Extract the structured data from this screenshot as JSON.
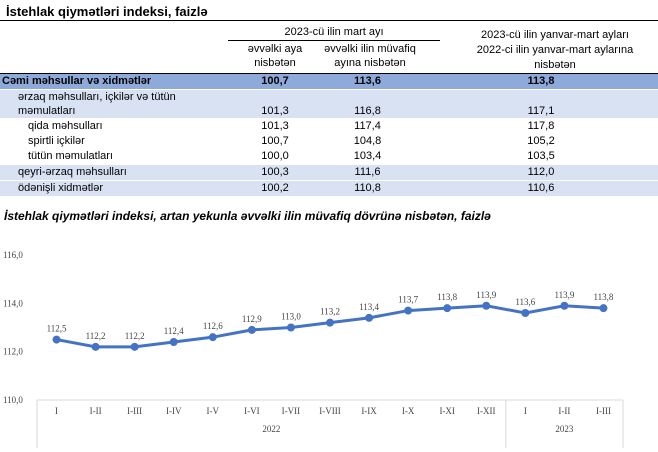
{
  "table": {
    "title": "İstehlak qiymətləri indeksi, faizlə",
    "group1": "2023-cü ilin mart ayı",
    "col1": [
      "əvvəlki aya",
      "nisbətən"
    ],
    "col2": [
      "əvvəlki ilin müvafiq",
      "ayına nisbətən"
    ],
    "col3": [
      "2023-cü ilin yanvar-mart ayları",
      "2022-ci ilin yanvar-mart aylarına",
      "nisbətən"
    ],
    "rows": [
      {
        "label": "Cəmi məhsullar və xidmətlər",
        "v1": "100,7",
        "v2": "113,6",
        "v3": "113,8"
      },
      {
        "label": "ərzaq məhsulları, içkilər və tütün",
        "label2": "məmulatları",
        "v1": "101,3",
        "v2": "116,8",
        "v3": "117,1"
      },
      {
        "label": "qida məhsulları",
        "v1": "101,3",
        "v2": "117,4",
        "v3": "117,8"
      },
      {
        "label": "spirtli içkilər",
        "v1": "100,7",
        "v2": "104,8",
        "v3": "105,2"
      },
      {
        "label": "tütün məmulatları",
        "v1": "100,0",
        "v2": "103,4",
        "v3": "103,5"
      },
      {
        "label": "qeyri-ərzaq məhsulları",
        "v1": "100,3",
        "v2": "111,6",
        "v3": "112,0"
      },
      {
        "label": "ödənişli xidmətlər",
        "v1": "100,2",
        "v2": "110,8",
        "v3": "110,6"
      }
    ]
  },
  "chart_data": {
    "type": "line",
    "title": "İstehlak qiymətləri indeksi, artan yekunla əvvəlki ilin müvafiq dövrünə nisbətən, faizlə",
    "categories": [
      "I",
      "I-II",
      "I-III",
      "I-IV",
      "I-V",
      "I-VI",
      "I-VII",
      "I-VIII",
      "I-IX",
      "I-X",
      "I-XI",
      "I-XII",
      "I",
      "I-II",
      "I-III"
    ],
    "groups": [
      {
        "label": "2022",
        "count": 12
      },
      {
        "label": "2023",
        "count": 3
      }
    ],
    "values": [
      112.5,
      112.2,
      112.2,
      112.4,
      112.6,
      112.9,
      113.0,
      113.2,
      113.4,
      113.7,
      113.8,
      113.9,
      113.6,
      113.9,
      113.8
    ],
    "value_labels": [
      "112,5",
      "112,2",
      "112,2",
      "112,4",
      "112,6",
      "112,9",
      "113,0",
      "113,2",
      "113,4",
      "113,7",
      "113,8",
      "113,9",
      "113,6",
      "113,9",
      "113,8"
    ],
    "yticks": [
      "110,0",
      "112,0",
      "114,0",
      "116,0"
    ],
    "ylim": [
      110,
      116
    ],
    "color": "#4472c4"
  }
}
